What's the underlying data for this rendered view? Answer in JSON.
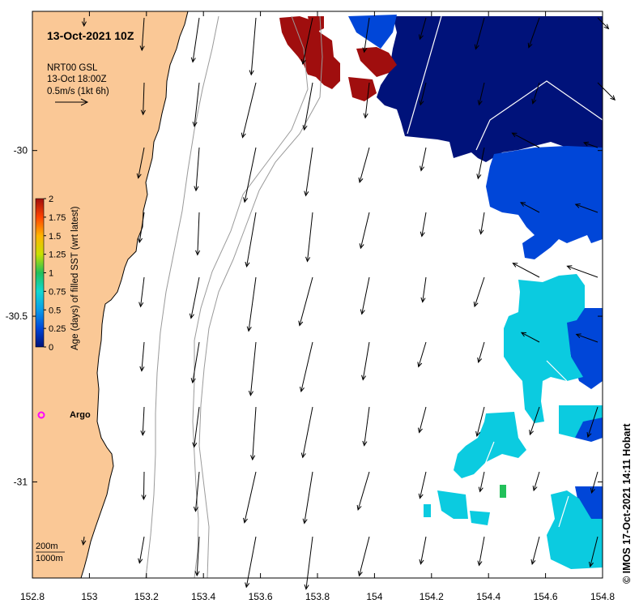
{
  "title": "13-Oct-2021 10Z",
  "current_legend": {
    "line1": "NRT00 GSL",
    "line2": "13-Oct 18:00Z",
    "line3": "0.5m/s (1kt 6h)"
  },
  "colorbar": {
    "label": "Age (days) of filled SST (wrt latest)",
    "ticks": [
      "2",
      "1.75",
      "1.5",
      "1.25",
      "1",
      "0.75",
      "0.5",
      "0.25",
      "0"
    ],
    "range": [
      0,
      2
    ]
  },
  "argo_label": "Argo",
  "depth_legend": {
    "line1": "200m",
    "line2": "1000m"
  },
  "credit": "© IMOS 17-Oct-2021 14:11 Hobart",
  "axes": {
    "x_ticks": [
      "152.8",
      "153",
      "153.2",
      "153.4",
      "153.6",
      "153.8",
      "154",
      "154.2",
      "154.4",
      "154.6",
      "154.8"
    ],
    "y_ticks": [
      "-30",
      "-30.5",
      "-31"
    ],
    "x_range": [
      152.8,
      154.8
    ],
    "y_range": [
      -31.29,
      -29.58
    ]
  },
  "colors": {
    "land": "#fac896",
    "age_0": "#00127a",
    "age_025": "#0046d8",
    "age_05": "#0bcbe0",
    "age_1": "#22c05a",
    "age_2": "#a00e0e",
    "argo": "#ff00ff"
  }
}
